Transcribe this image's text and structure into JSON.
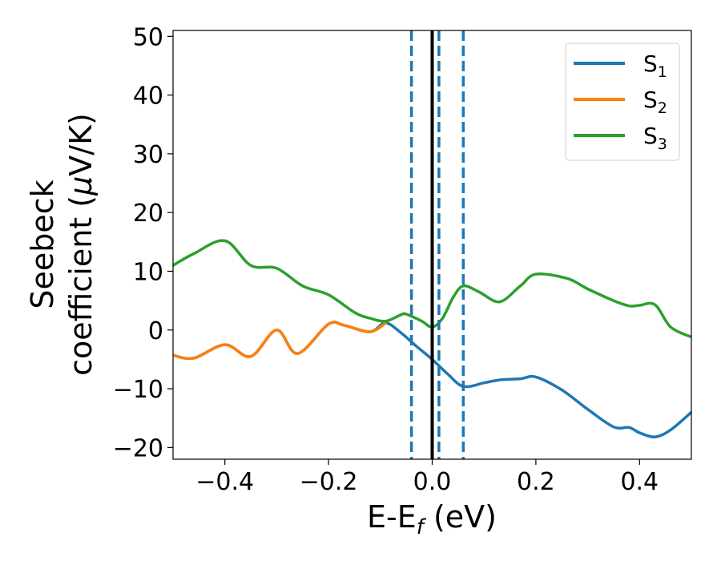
{
  "chart_data": {
    "type": "line",
    "xlabel": "E-E",
    "xlabel_sub": "f",
    "xlabel_suffix": " (eV)",
    "ylabel_line1": "Seebeck",
    "ylabel_line2_a": "coefficient  (",
    "ylabel_line2_mu": "μ",
    "ylabel_line2_b": "V/K)",
    "xlim": [
      -0.5,
      0.5
    ],
    "ylim": [
      -22,
      51
    ],
    "xticks": [
      -0.4,
      -0.2,
      0.0,
      0.2,
      0.4
    ],
    "xtick_labels": [
      "−0.4",
      "−0.2",
      "0.0",
      "0.2",
      "0.4"
    ],
    "yticks": [
      -20,
      -10,
      0,
      10,
      20,
      30,
      40,
      50
    ],
    "ytick_labels": [
      "−20",
      "−10",
      "0",
      "10",
      "20",
      "30",
      "40",
      "50"
    ],
    "grid": false,
    "legend_position": "top-right",
    "vlines": [
      {
        "x": -0.04,
        "style": "dashed",
        "color": "#1f77b4"
      },
      {
        "x": 0.013,
        "style": "dashed",
        "color": "#1f77b4"
      },
      {
        "x": 0.06,
        "style": "dashed",
        "color": "#1f77b4"
      },
      {
        "x": 0.0,
        "style": "solid",
        "color": "#000000"
      }
    ],
    "series": [
      {
        "name": "S",
        "sub": "1",
        "color": "#1f77b4",
        "x": [
          -0.5,
          -0.46,
          -0.4,
          -0.35,
          -0.3,
          -0.26,
          -0.2,
          -0.17,
          -0.12,
          -0.09,
          -0.06,
          -0.03,
          0.0,
          0.03,
          0.06,
          0.1,
          0.13,
          0.17,
          0.2,
          0.25,
          0.3,
          0.35,
          0.38,
          0.4,
          0.43,
          0.46,
          0.5
        ],
        "y": [
          -4.3,
          -4.8,
          -2.5,
          -4.5,
          0.0,
          -4.0,
          1.0,
          0.8,
          -0.3,
          1.2,
          -0.5,
          -2.8,
          -5.0,
          -7.5,
          -9.6,
          -9.0,
          -8.5,
          -8.3,
          -8.0,
          -10.2,
          -13.5,
          -16.5,
          -16.6,
          -17.5,
          -18.2,
          -17.0,
          -14.0
        ]
      },
      {
        "name": "S",
        "sub": "2",
        "color": "#ff7f0e",
        "x": [
          -0.5,
          -0.46,
          -0.4,
          -0.35,
          -0.3,
          -0.26,
          -0.2,
          -0.17,
          -0.12,
          -0.09
        ],
        "y": [
          -4.3,
          -4.8,
          -2.5,
          -4.5,
          0.0,
          -4.0,
          1.0,
          0.8,
          -0.3,
          1.2
        ]
      },
      {
        "name": "S",
        "sub": "3",
        "color": "#2ca02c",
        "x": [
          -0.5,
          -0.46,
          -0.4,
          -0.35,
          -0.3,
          -0.25,
          -0.2,
          -0.15,
          -0.12,
          -0.09,
          -0.06,
          -0.05,
          -0.02,
          0.0,
          0.02,
          0.04,
          0.06,
          0.09,
          0.13,
          0.17,
          0.2,
          0.26,
          0.3,
          0.35,
          0.38,
          0.4,
          0.43,
          0.46,
          0.5
        ],
        "y": [
          11.0,
          13.0,
          15.2,
          11.0,
          10.5,
          7.5,
          6.0,
          3.0,
          2.0,
          1.5,
          2.6,
          2.7,
          1.5,
          0.5,
          2.0,
          5.5,
          7.5,
          6.5,
          4.8,
          7.5,
          9.5,
          8.8,
          7.0,
          5.0,
          4.1,
          4.2,
          4.3,
          0.5,
          -1.2
        ]
      }
    ]
  }
}
